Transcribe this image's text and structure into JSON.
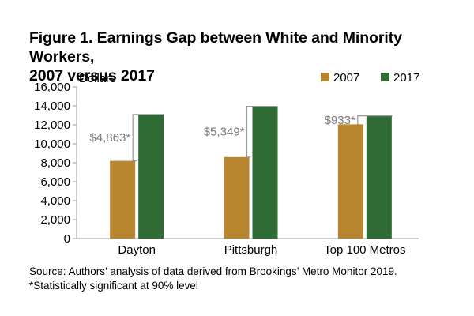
{
  "title_line1": "Figure 1. Earnings Gap between White and Minority Workers,",
  "title_line2": "2007 versus 2017",
  "source": "Source: Authors’ analysis of data derived from Brookings’ Metro Monitor 2019.",
  "footnote": "*Statistically significant at 90% level",
  "colors": {
    "s2007": "#b8862e",
    "s2017": "#2e6b35",
    "axis": "#999999",
    "bracket": "#999999",
    "gaplabel": "#7a7a7a"
  },
  "chart_data": {
    "type": "bar",
    "ylabel": "Dollars",
    "ylim": [
      0,
      16000
    ],
    "yticks": [
      0,
      2000,
      4000,
      6000,
      8000,
      10000,
      12000,
      14000,
      16000
    ],
    "ytick_labels": [
      "0",
      "2,000",
      "4,000",
      "6,000",
      "8,000",
      "10,000",
      "12,000",
      "14,000",
      "16,000"
    ],
    "categories": [
      "Dayton",
      "Pittsburgh",
      "Top 100 Metros"
    ],
    "series": [
      {
        "name": "2007",
        "values": [
          8200,
          8600,
          12050
        ]
      },
      {
        "name": "2017",
        "values": [
          13100,
          13950,
          12950
        ]
      }
    ],
    "gap_labels": [
      "$4,863*",
      "$5,349*",
      "$933*"
    ],
    "legend_position": "top-right",
    "grid": false
  }
}
